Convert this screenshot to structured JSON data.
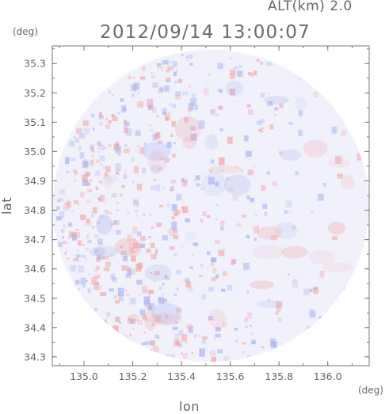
{
  "header": {
    "altitude_label": "ALT(km) 2.0",
    "timestamp": "2012/09/14 13:00:07"
  },
  "axes": {
    "x_title": "lon",
    "y_title": "lat",
    "x_unit": "(deg)",
    "y_unit": "(deg)",
    "x_ticks": [
      {
        "value": 135.0,
        "label": "135.0"
      },
      {
        "value": 135.2,
        "label": "135.2"
      },
      {
        "value": 135.4,
        "label": "135.4"
      },
      {
        "value": 135.6,
        "label": "135.6"
      },
      {
        "value": 135.8,
        "label": "135.8"
      },
      {
        "value": 136.0,
        "label": "136.0"
      }
    ],
    "y_ticks": [
      {
        "value": 34.3,
        "label": "34.3"
      },
      {
        "value": 34.4,
        "label": "34.4"
      },
      {
        "value": 34.5,
        "label": "34.5"
      },
      {
        "value": 34.6,
        "label": "34.6"
      },
      {
        "value": 34.7,
        "label": "34.7"
      },
      {
        "value": 34.8,
        "label": "34.8"
      },
      {
        "value": 34.9,
        "label": "34.9"
      },
      {
        "value": 35.0,
        "label": "35.0"
      },
      {
        "value": 35.1,
        "label": "35.1"
      },
      {
        "value": 35.2,
        "label": "35.2"
      },
      {
        "value": 35.3,
        "label": "35.3"
      }
    ],
    "x_range": [
      134.87,
      136.17
    ],
    "y_range": [
      34.27,
      35.36
    ]
  },
  "radar": {
    "center_lon": 135.52,
    "center_lat": 34.815,
    "radius_lon": 0.648,
    "radius_lat": 0.532
  },
  "colors": {
    "positive": "#f2a6a6",
    "negative": "#a9b3f0",
    "background": "#f1f1fb",
    "axis": "#777777"
  }
}
